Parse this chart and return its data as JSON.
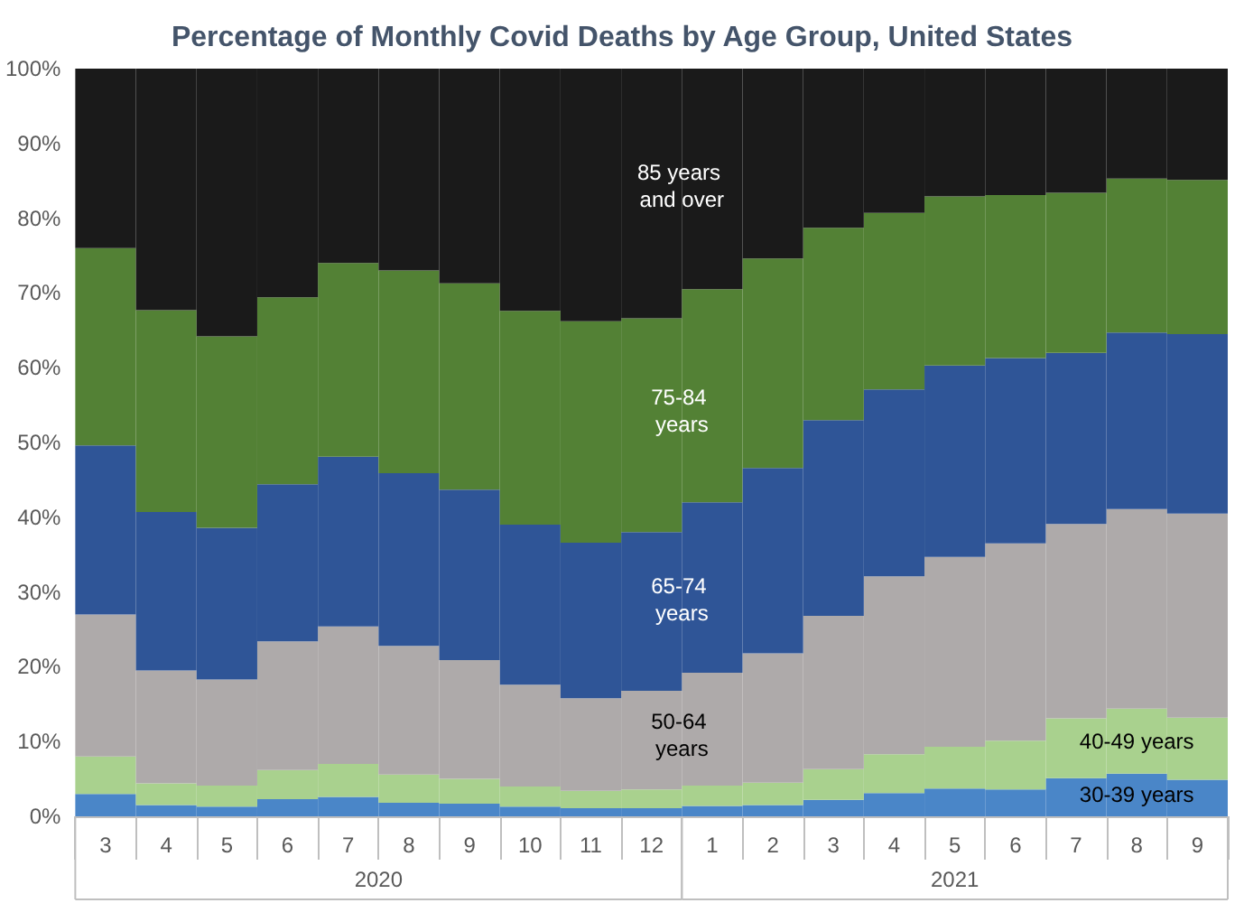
{
  "chart_data": {
    "type": "bar",
    "title": "Percentage of Monthly Covid Deaths by Age Group, United States",
    "categories": [
      "3",
      "4",
      "5",
      "6",
      "7",
      "8",
      "9",
      "10",
      "11",
      "12",
      "1",
      "2",
      "3",
      "4",
      "5",
      "6",
      "7",
      "8",
      "9"
    ],
    "annotations": [
      "2020",
      "2021"
    ],
    "stacked": true,
    "grid": false,
    "legend": false,
    "ylim": [
      0,
      100
    ],
    "yticks": [
      {
        "value": 0,
        "label": "0%"
      },
      {
        "value": 10,
        "label": "10%"
      },
      {
        "value": 20,
        "label": "20%"
      },
      {
        "value": 30,
        "label": "30%"
      },
      {
        "value": 40,
        "label": "40%"
      },
      {
        "value": 50,
        "label": "50%"
      },
      {
        "value": 60,
        "label": "60%"
      },
      {
        "value": 70,
        "label": "70%"
      },
      {
        "value": 80,
        "label": "80%"
      },
      {
        "value": 90,
        "label": "90%"
      },
      {
        "value": 100,
        "label": "100%"
      }
    ],
    "series": [
      {
        "name": "30-39 years",
        "color": "#4a86c8",
        "values": [
          3.0,
          1.5,
          1.3,
          2.3,
          2.6,
          1.8,
          1.7,
          1.3,
          1.1,
          1.1,
          1.4,
          1.5,
          2.2,
          3.1,
          3.7,
          3.6,
          5.1,
          5.7,
          4.9
        ]
      },
      {
        "name": "40-49 years",
        "color": "#a9d18e",
        "values": [
          5.0,
          2.9,
          2.8,
          3.9,
          4.4,
          3.8,
          3.3,
          2.7,
          2.3,
          2.5,
          2.7,
          3.0,
          4.1,
          5.2,
          5.6,
          6.5,
          8.0,
          8.7,
          8.3
        ]
      },
      {
        "name": "50-64 years",
        "color": "#aeaaaa",
        "values": [
          19.0,
          15.1,
          14.2,
          17.2,
          18.4,
          17.2,
          15.9,
          13.6,
          12.4,
          13.2,
          15.1,
          17.3,
          20.5,
          23.8,
          25.4,
          26.4,
          26.0,
          26.7,
          27.3
        ]
      },
      {
        "name": "65-74 years",
        "color": "#2f5597",
        "values": [
          22.6,
          21.2,
          20.3,
          21.0,
          22.7,
          23.1,
          22.8,
          21.4,
          20.8,
          21.2,
          22.8,
          24.8,
          26.2,
          25.0,
          25.6,
          24.8,
          22.9,
          23.6,
          24.0
        ]
      },
      {
        "name": "75-84 years",
        "color": "#538135",
        "values": [
          26.4,
          27.0,
          25.6,
          25.0,
          25.9,
          27.1,
          27.6,
          28.6,
          29.6,
          28.6,
          28.5,
          28.0,
          25.7,
          23.6,
          22.6,
          21.8,
          21.4,
          20.6,
          20.6
        ]
      },
      {
        "name": "85 years and over",
        "color": "#1a1a1a",
        "values": [
          24.0,
          32.3,
          35.8,
          30.6,
          26.0,
          27.0,
          28.7,
          32.4,
          33.8,
          33.4,
          29.5,
          25.4,
          21.3,
          19.3,
          17.1,
          16.9,
          16.6,
          14.7,
          14.9
        ]
      }
    ]
  }
}
